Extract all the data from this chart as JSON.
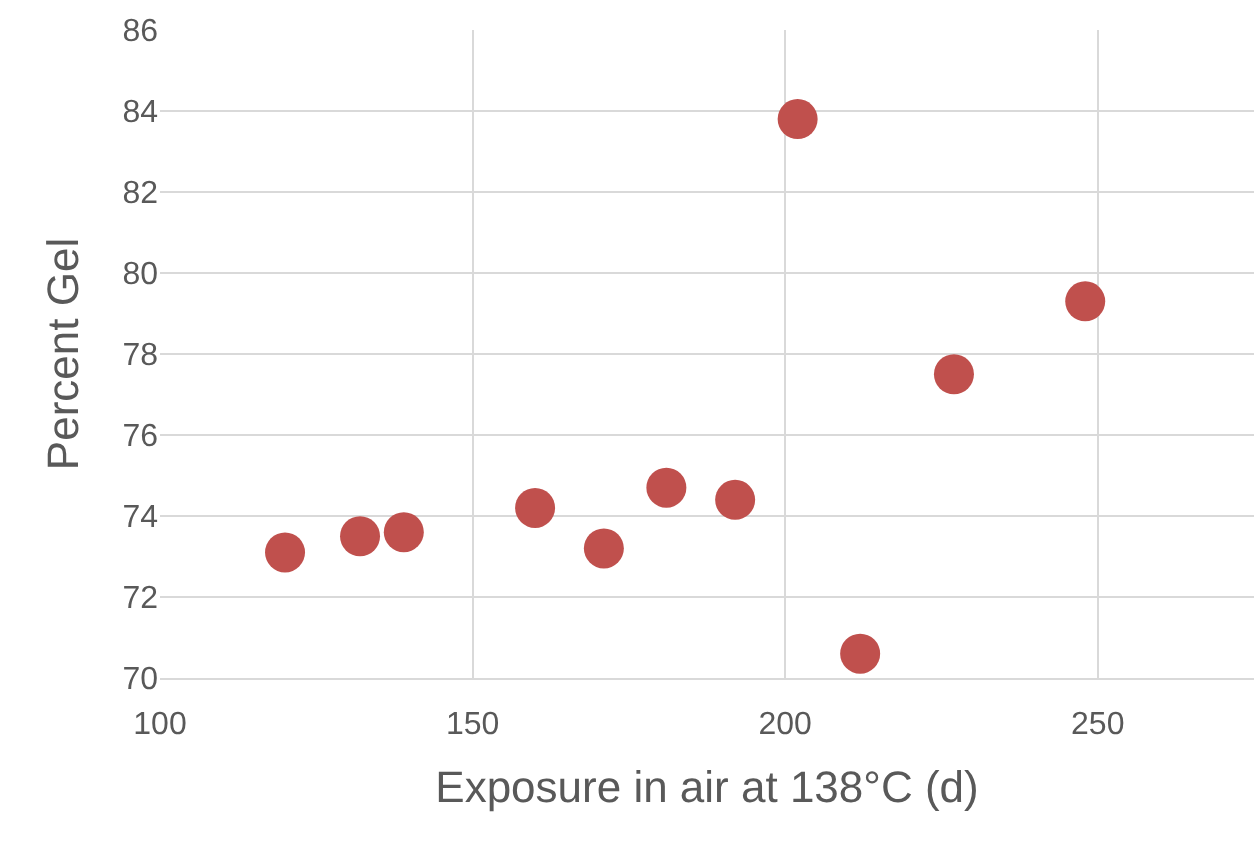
{
  "chart_data": {
    "type": "scatter",
    "xlabel": "Exposure in air at 138°C (d)",
    "ylabel": "Percent Gel",
    "x": [
      120,
      132,
      139,
      160,
      171,
      181,
      192,
      202,
      212,
      227,
      248
    ],
    "series": [
      {
        "color": "#c0504d",
        "values": [
          73.1,
          73.5,
          73.6,
          74.2,
          73.2,
          74.7,
          74.4,
          83.8,
          70.6,
          77.5,
          79.3
        ]
      }
    ],
    "xlim": [
      100,
      275
    ],
    "xticks": [
      100,
      150,
      200,
      250
    ],
    "ylim": [
      70,
      86
    ],
    "yticks": [
      70,
      72,
      74,
      76,
      78,
      80,
      82,
      84,
      86
    ],
    "grid": true,
    "marker": "circle"
  }
}
